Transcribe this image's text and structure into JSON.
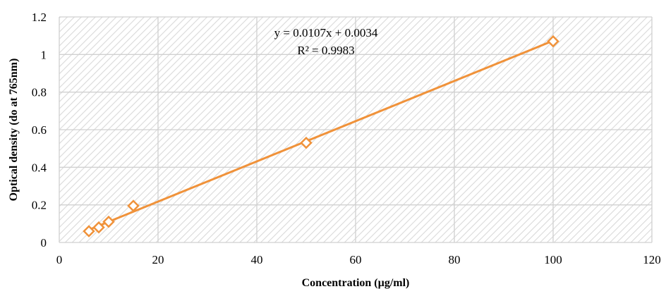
{
  "chart_data": {
    "type": "scatter",
    "xlabel": "Concentration (µg/ml)",
    "ylabel": "Optical density (do at 765nm)",
    "xlim": [
      0,
      120
    ],
    "ylim": [
      0,
      1.2
    ],
    "x_ticks": [
      "0",
      "20",
      "40",
      "60",
      "80",
      "100",
      "120"
    ],
    "y_ticks": [
      "0",
      "0.2",
      "0.4",
      "0.6",
      "0.8",
      "1",
      "1.2"
    ],
    "grid": true,
    "series": [
      {
        "points": [
          {
            "x": 6,
            "y": 0.06
          },
          {
            "x": 8,
            "y": 0.08
          },
          {
            "x": 10,
            "y": 0.11
          },
          {
            "x": 15,
            "y": 0.195
          },
          {
            "x": 50,
            "y": 0.53
          },
          {
            "x": 100,
            "y": 1.07
          }
        ],
        "marker": "diamond-open",
        "color": "#f0923a"
      }
    ],
    "trendline": {
      "type": "linear",
      "slope": 0.0107,
      "intercept": 0.0034,
      "x_range": [
        6,
        100
      ],
      "color": "#f0923a",
      "equation_text": "y = 0.0107x + 0.0034",
      "r2_text": "R² = 0.9983"
    },
    "colors": {
      "plot_background_hatch": "#d9d9d9",
      "gridline": "#d0d0d0",
      "series": "#f0923a"
    }
  }
}
